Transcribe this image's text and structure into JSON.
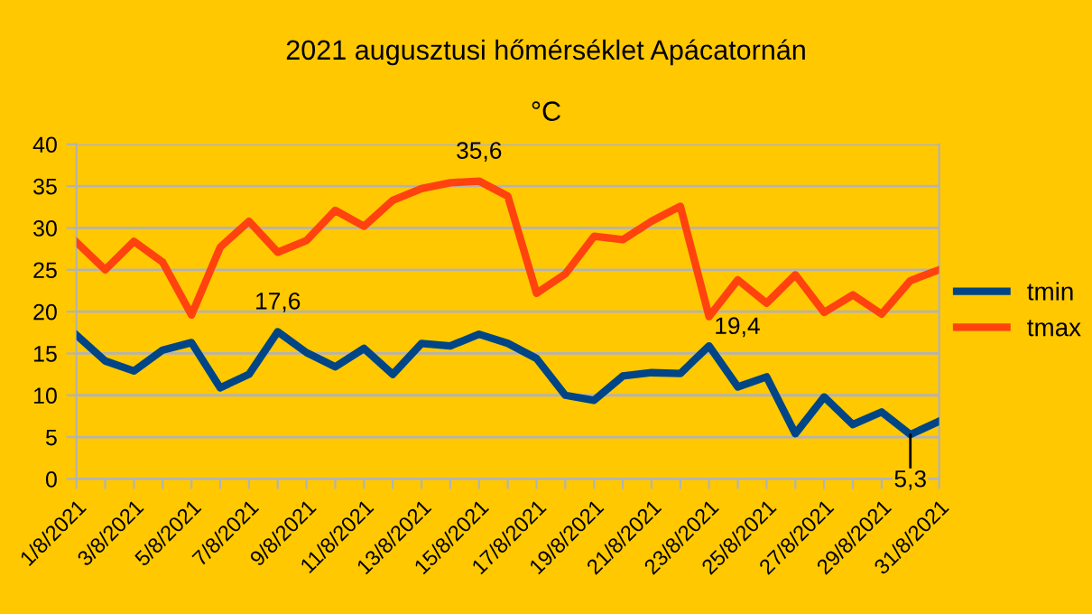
{
  "chart_data": {
    "type": "line",
    "title": "2021 augusztusi hőmérséklet Apácatornán",
    "subtitle": "°C",
    "categories": [
      "1/8/2021",
      null,
      "3/8/2021",
      null,
      "5/8/2021",
      null,
      "7/8/2021",
      null,
      "9/8/2021",
      null,
      "11/8/2021",
      null,
      "13/8/2021",
      null,
      "15/8/2021",
      null,
      "17/8/2021",
      null,
      "19/8/2021",
      null,
      "21/8/2021",
      null,
      "23/8/2021",
      null,
      "25/8/2021",
      null,
      "27/8/2021",
      null,
      "29/8/2021",
      null,
      "31/8/2021"
    ],
    "series": [
      {
        "name": "tmin",
        "color": "#004586",
        "values": [
          17.2,
          14.1,
          12.9,
          15.4,
          16.3,
          10.9,
          12.5,
          17.6,
          15.1,
          13.4,
          15.6,
          12.5,
          16.2,
          15.9,
          17.3,
          16.2,
          14.4,
          10.0,
          9.4,
          12.3,
          12.7,
          12.6,
          15.9,
          11.0,
          12.2,
          5.4,
          9.8,
          6.5,
          8.0,
          5.3,
          6.9
        ],
        "value_labels": [
          null,
          null,
          null,
          null,
          null,
          null,
          null,
          "17,6",
          null,
          null,
          null,
          null,
          null,
          null,
          null,
          null,
          null,
          null,
          null,
          null,
          null,
          null,
          null,
          null,
          null,
          null,
          null,
          null,
          null,
          "5,3",
          null
        ]
      },
      {
        "name": "tmax",
        "color": "#ff420e",
        "values": [
          28.3,
          25.0,
          28.4,
          25.9,
          19.6,
          27.7,
          30.8,
          27.1,
          28.5,
          32.1,
          30.2,
          33.3,
          34.7,
          35.4,
          35.6,
          33.8,
          22.2,
          24.5,
          29.0,
          28.6,
          30.8,
          32.6,
          19.4,
          23.8,
          21.0,
          24.4,
          19.9,
          22.0,
          19.7,
          23.7,
          25.0
        ],
        "value_labels": [
          null,
          null,
          null,
          null,
          null,
          null,
          null,
          null,
          null,
          null,
          null,
          null,
          null,
          null,
          "35,6",
          null,
          null,
          null,
          null,
          null,
          null,
          null,
          "19,4",
          null,
          null,
          null,
          null,
          null,
          null,
          null,
          null
        ]
      }
    ],
    "ylim": [
      0,
      40
    ],
    "yticks": [
      0,
      5,
      10,
      15,
      20,
      25,
      30,
      35,
      40
    ],
    "grid": "y",
    "legend": "right",
    "marker": "none",
    "line_style": "solid"
  }
}
